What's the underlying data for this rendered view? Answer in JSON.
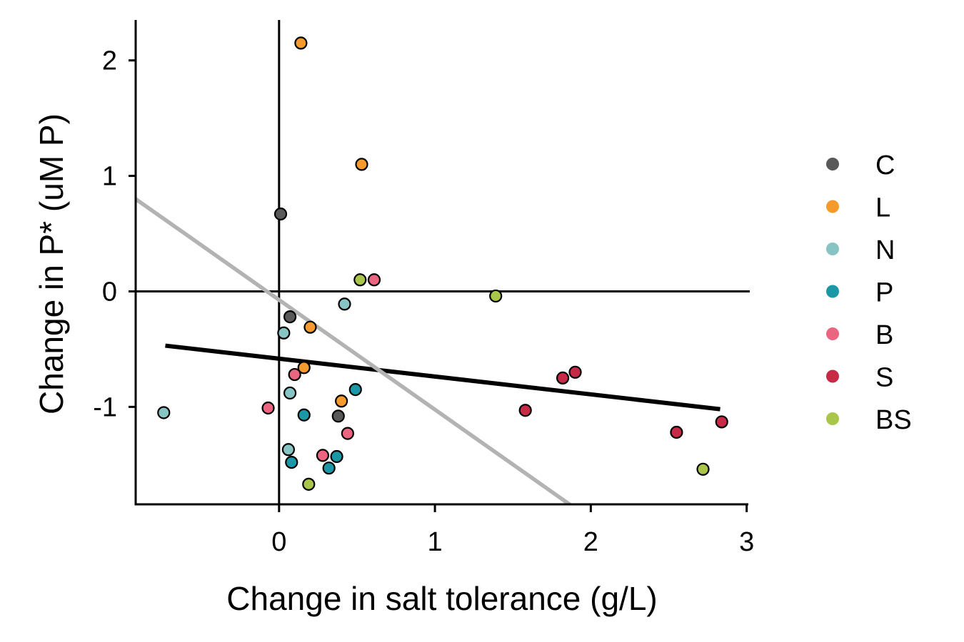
{
  "chart_data": {
    "type": "scatter",
    "title": "",
    "xlabel": "Change in salt tolerance (g/L)",
    "ylabel": "Change in P* (uM P)",
    "xlim": [
      -0.92,
      3.02
    ],
    "ylim": [
      -1.85,
      2.35
    ],
    "x_ticks": [
      0,
      1,
      2,
      3
    ],
    "y_ticks": [
      -1,
      0,
      1,
      2
    ],
    "grid": false,
    "legend_position": "right",
    "reference_lines": {
      "vertical_x": 0,
      "horizontal_y": 0
    },
    "series": [
      {
        "name": "C",
        "color": "#595959",
        "points": [
          {
            "x": 0.01,
            "y": 0.67
          },
          {
            "x": 0.07,
            "y": -0.22
          },
          {
            "x": 0.38,
            "y": -1.08
          }
        ]
      },
      {
        "name": "L",
        "color": "#F59A2C",
        "points": [
          {
            "x": 0.14,
            "y": 2.15
          },
          {
            "x": 0.53,
            "y": 1.1
          },
          {
            "x": 0.2,
            "y": -0.31
          },
          {
            "x": 0.16,
            "y": -0.66
          },
          {
            "x": 0.4,
            "y": -0.95
          }
        ]
      },
      {
        "name": "N",
        "color": "#87C5C4",
        "points": [
          {
            "x": -0.74,
            "y": -1.05
          },
          {
            "x": 0.42,
            "y": -0.11
          },
          {
            "x": 0.03,
            "y": -0.36
          },
          {
            "x": 0.07,
            "y": -0.88
          },
          {
            "x": 0.06,
            "y": -1.37
          }
        ]
      },
      {
        "name": "P",
        "color": "#1A98A6",
        "points": [
          {
            "x": 0.16,
            "y": -1.07
          },
          {
            "x": 0.49,
            "y": -0.85
          },
          {
            "x": 0.08,
            "y": -1.48
          },
          {
            "x": 0.37,
            "y": -1.43
          },
          {
            "x": 0.32,
            "y": -1.53
          }
        ]
      },
      {
        "name": "B",
        "color": "#EC6580",
        "points": [
          {
            "x": 0.61,
            "y": 0.1
          },
          {
            "x": 0.1,
            "y": -0.72
          },
          {
            "x": -0.07,
            "y": -1.01
          },
          {
            "x": 0.44,
            "y": -1.23
          },
          {
            "x": 0.28,
            "y": -1.42
          }
        ]
      },
      {
        "name": "S",
        "color": "#C72A46",
        "points": [
          {
            "x": 1.82,
            "y": -0.75
          },
          {
            "x": 1.9,
            "y": -0.7
          },
          {
            "x": 1.58,
            "y": -1.03
          },
          {
            "x": 2.55,
            "y": -1.22
          },
          {
            "x": 2.84,
            "y": -1.13
          }
        ]
      },
      {
        "name": "BS",
        "color": "#A9C64A",
        "points": [
          {
            "x": 0.52,
            "y": 0.1
          },
          {
            "x": 1.39,
            "y": -0.04
          },
          {
            "x": 0.19,
            "y": -1.67
          },
          {
            "x": 2.72,
            "y": -1.54
          }
        ]
      }
    ],
    "trend_lines": [
      {
        "color": "#000000",
        "x1": -0.73,
        "y1": -0.47,
        "x2": 2.83,
        "y2": -1.02
      },
      {
        "color": "#B3B3B3",
        "x1": -0.92,
        "y1": 0.8,
        "x2": 1.87,
        "y2": -1.85
      }
    ]
  }
}
